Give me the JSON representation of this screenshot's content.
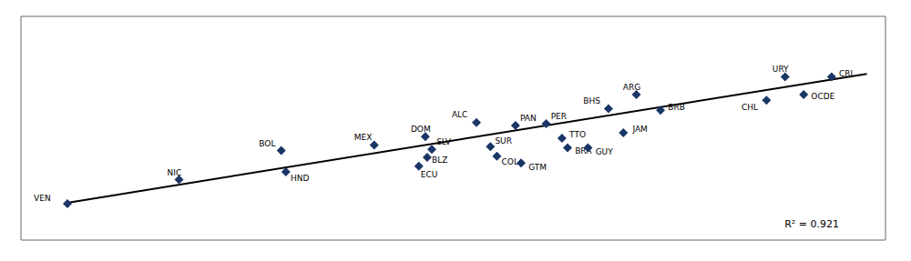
{
  "chart_data": {
    "type": "scatter",
    "xlim": [
      0.5,
      9.8
    ],
    "ylim": [
      1.5,
      5.5
    ],
    "xticks": [
      0.5,
      2.0,
      3.5,
      5.0,
      6.5,
      8.0,
      9.5
    ],
    "yticks": [
      1.5,
      2.0,
      2.5,
      3.0,
      3.5,
      4.0,
      4.5,
      5.0,
      5.5
    ],
    "grid": true,
    "tick_labels": false,
    "series": [
      {
        "type": "scatter",
        "color": "#1a3566",
        "marker": "diamond",
        "labels": [
          "VEN",
          "NIC",
          "BOL",
          "HND",
          "MEX",
          "DOM",
          "SLV",
          "BLZ",
          "ECU",
          "ALC",
          "SUR",
          "COL",
          "PAN",
          "GTM",
          "PER",
          "TTO",
          "BRA",
          "GUY",
          "BHS",
          "ARG",
          "JAM",
          "BRB",
          "CHL",
          "URY",
          "OCDE",
          "CRI"
        ],
        "x": [
          1.0,
          2.2,
          3.3,
          3.35,
          4.3,
          4.85,
          4.92,
          4.87,
          4.78,
          5.4,
          5.55,
          5.62,
          5.82,
          5.88,
          6.15,
          6.32,
          6.38,
          6.6,
          6.82,
          7.12,
          6.98,
          7.38,
          8.52,
          8.72,
          8.92,
          9.22
        ],
        "values": [
          2.15,
          2.58,
          3.1,
          2.72,
          3.2,
          3.35,
          3.12,
          2.98,
          2.82,
          3.6,
          3.17,
          3.0,
          3.55,
          2.88,
          3.58,
          3.32,
          3.15,
          3.15,
          3.85,
          4.1,
          3.42,
          3.82,
          4.0,
          4.42,
          4.1,
          4.42
        ]
      },
      {
        "type": "line",
        "color": "#000000",
        "x": [
          1.0,
          9.6
        ],
        "values": [
          2.168,
          4.4728
        ]
      }
    ],
    "annotations": [
      {
        "text": "R² = 0.921",
        "x": 9.3,
        "y": 1.78
      }
    ]
  }
}
